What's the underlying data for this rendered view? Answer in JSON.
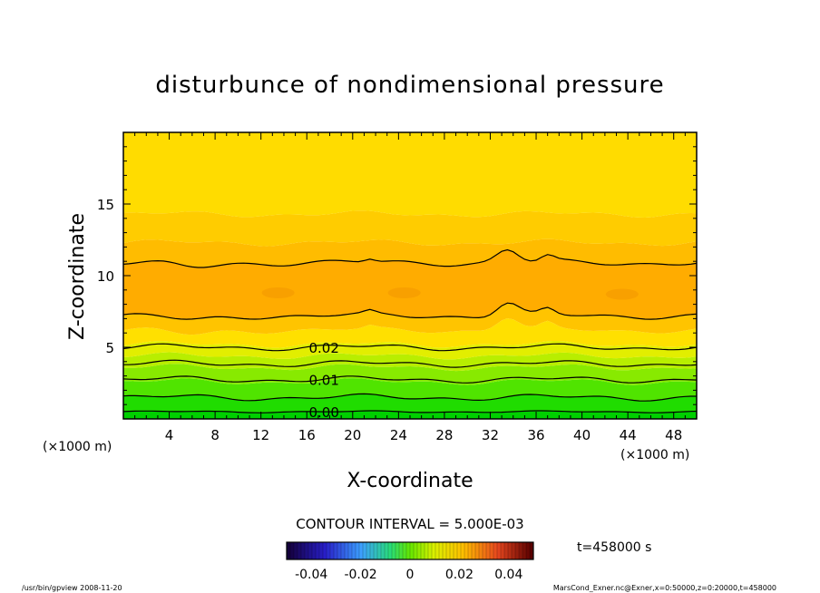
{
  "chart_data": {
    "type": "heatmap",
    "title": "disturbunce of nondimensional pressure",
    "xlabel": "X-coordinate",
    "ylabel": "Z-coordinate",
    "x_unit": "(×1000 m)",
    "y_unit": "(×1000 m)",
    "xlim": [
      0,
      50
    ],
    "ylim": [
      0,
      20
    ],
    "x_ticks": [
      4,
      8,
      12,
      16,
      20,
      24,
      28,
      32,
      36,
      40,
      44,
      48
    ],
    "y_ticks": [
      5,
      10,
      15
    ],
    "contour_interval": "CONTOUR INTERVAL = 5.000E-03",
    "contour_labels": [
      {
        "text": "0.02",
        "x": 17.5,
        "z": 5.0
      },
      {
        "text": "0.01",
        "x": 17.5,
        "z": 2.75
      },
      {
        "text": "0.00",
        "x": 17.5,
        "z": 0.5
      }
    ],
    "bands": [
      {
        "z0": 0.0,
        "z1": 0.5,
        "color": "#00d000"
      },
      {
        "z0": 0.5,
        "z1": 1.5,
        "color": "#20dc00"
      },
      {
        "z0": 1.5,
        "z1": 2.6,
        "color": "#50e400"
      },
      {
        "z0": 2.6,
        "z1": 3.6,
        "color": "#88ea00"
      },
      {
        "z0": 3.6,
        "z1": 4.4,
        "color": "#b8ee00"
      },
      {
        "z0": 4.4,
        "z1": 5.2,
        "color": "#e2ee00"
      },
      {
        "z0": 5.2,
        "z1": 6.2,
        "color": "#ffe000"
      },
      {
        "z0": 6.2,
        "z1": 7.2,
        "color": "#ffc400"
      },
      {
        "z0": 7.2,
        "z1": 10.9,
        "color": "#ffac00"
      },
      {
        "z0": 10.9,
        "z1": 12.3,
        "color": "#ffbc00"
      },
      {
        "z0": 12.3,
        "z1": 14.3,
        "color": "#ffcc00"
      },
      {
        "z0": 14.3,
        "z1": 20.0,
        "color": "#ffdc00"
      }
    ],
    "contour_lines": [
      0.5,
      1.5,
      2.75,
      3.85,
      5.0,
      7.2,
      10.9
    ],
    "colorbar": {
      "ticks": [
        "-0.04",
        "-0.02",
        "0",
        "0.02",
        "0.04"
      ],
      "range": [
        -0.05,
        0.05
      ]
    }
  },
  "time_label": "t=458000 s",
  "footer_left": "/usr/bin/gpview   2008-11-20",
  "footer_right": "MarsCond_Exner.nc@Exner,x=0:50000,z=0:20000,t=458000"
}
